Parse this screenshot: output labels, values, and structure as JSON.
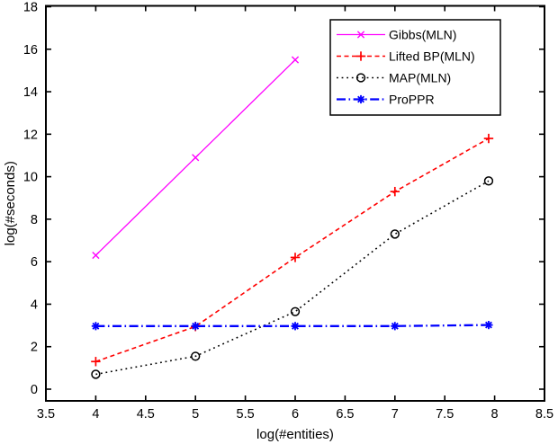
{
  "figure": {
    "background": "#ffffff",
    "axis_color": "#000000",
    "text_color": "#000000"
  },
  "chart_data": {
    "type": "line",
    "title": "",
    "xlabel": "log(#entities)",
    "ylabel": "log(#seconds)",
    "xlim": [
      3.5,
      8.5
    ],
    "ylim": [
      0,
      18
    ],
    "xticks": [
      3.5,
      4,
      4.5,
      5,
      5.5,
      6,
      6.5,
      7,
      7.5,
      8,
      8.5
    ],
    "yticks": [
      0,
      2,
      4,
      6,
      8,
      10,
      12,
      14,
      16,
      18
    ],
    "grid": false,
    "legend": {
      "position": "top-right",
      "entries": [
        "Gibbs(MLN)",
        "Lifted BP(MLN)",
        "MAP(MLN)",
        "ProPPR"
      ]
    },
    "series": [
      {
        "name": "Gibbs(MLN)",
        "color": "#ff00ff",
        "line_style": "solid",
        "marker": "x",
        "x": [
          4,
          5,
          6
        ],
        "y": [
          6.3,
          10.9,
          15.5
        ]
      },
      {
        "name": "Lifted BP(MLN)",
        "color": "#ff0000",
        "line_style": "dashed",
        "marker": "plus",
        "x": [
          4,
          5,
          6,
          7,
          7.94
        ],
        "y": [
          1.3,
          2.95,
          6.2,
          9.3,
          11.8
        ]
      },
      {
        "name": "MAP(MLN)",
        "color": "#000000",
        "line_style": "dotted",
        "marker": "circle",
        "x": [
          4,
          5,
          6,
          7,
          7.94
        ],
        "y": [
          0.7,
          1.55,
          3.65,
          7.3,
          9.8
        ]
      },
      {
        "name": "ProPPR",
        "color": "#0000ff",
        "line_style": "dashdot",
        "marker": "asterisk",
        "x": [
          4,
          5,
          6,
          7,
          7.94
        ],
        "y": [
          2.97,
          2.97,
          2.97,
          2.97,
          3.02
        ]
      }
    ]
  }
}
